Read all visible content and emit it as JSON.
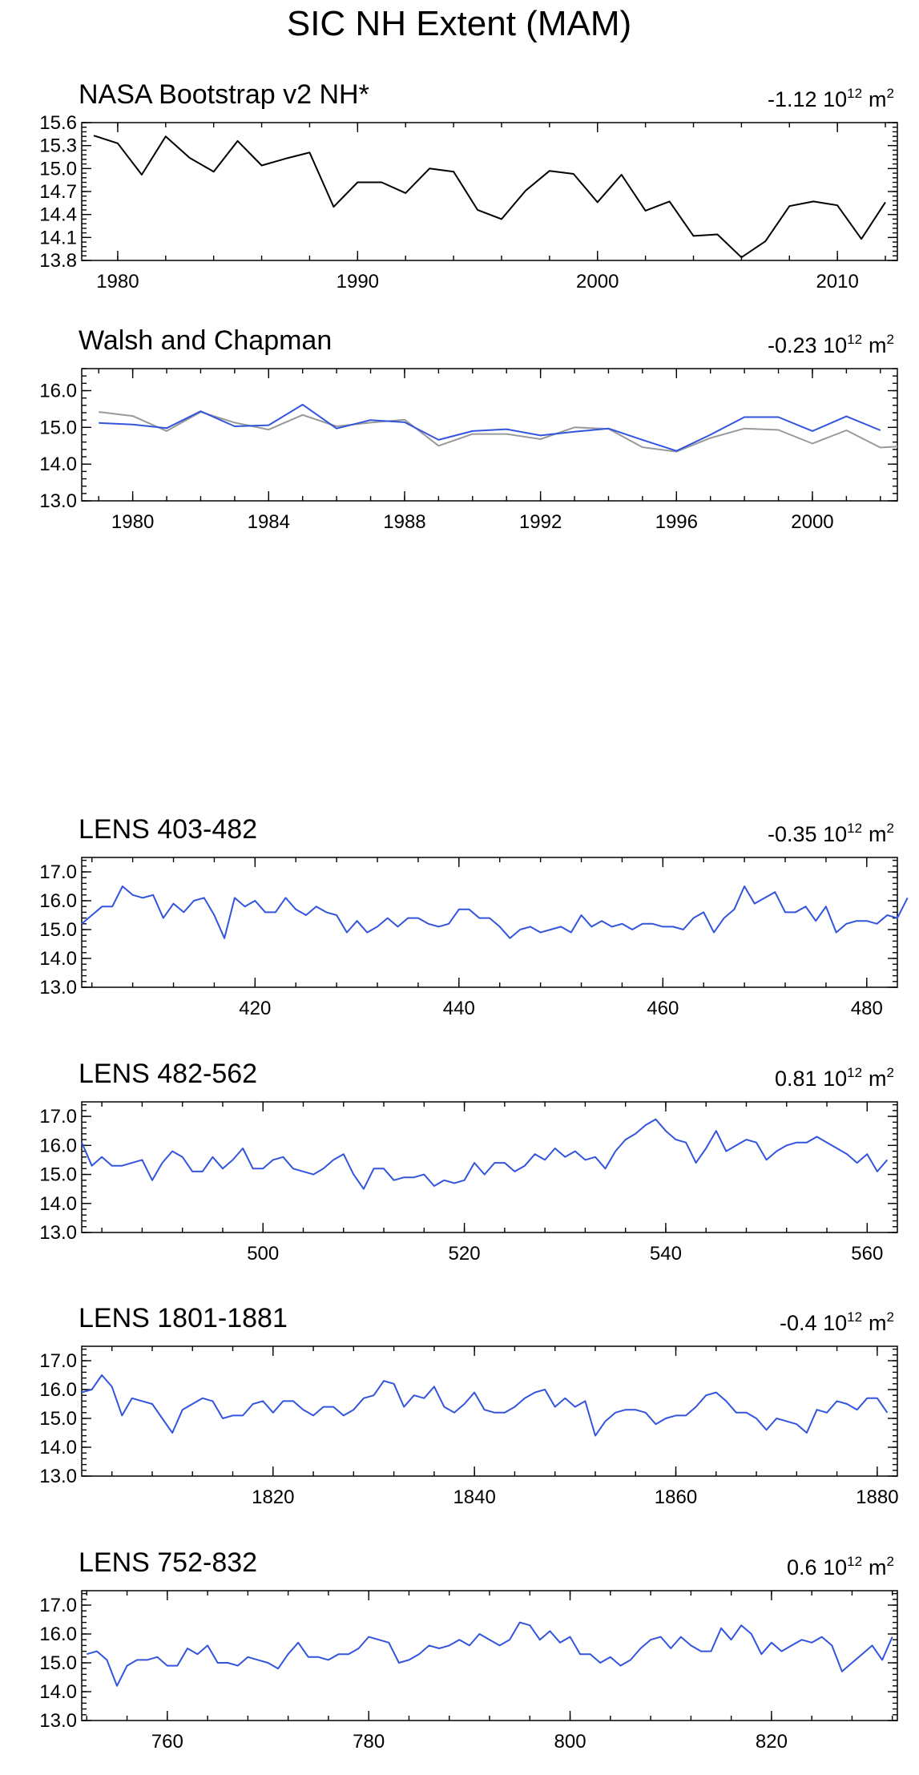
{
  "figure_title": "SIC NH Extent (MAM)",
  "chart_data": [
    {
      "type": "line",
      "title": "NASA Bootstrap v2 NH*",
      "trend_value": "-1.12",
      "trend_unit_base": "10",
      "trend_unit_exp": "12",
      "trend_unit_suffix": "m",
      "trend_unit_suffix_exp": "2",
      "xlim": [
        1978.5,
        2012.5
      ],
      "ylim": [
        13.8,
        15.6
      ],
      "yticks": [
        13.8,
        14.1,
        14.4,
        14.7,
        15.0,
        15.3,
        15.6
      ],
      "ytick_labels": [
        "13.8",
        "14.1",
        "14.4",
        "14.7",
        "15.0",
        "15.3",
        "15.6"
      ],
      "xticks": [
        1980,
        1990,
        2000,
        2010
      ],
      "xtick_labels": [
        "1980",
        "1990",
        "2000",
        "2010"
      ],
      "x_minor_step": 2,
      "series": [
        {
          "color": "#000000",
          "x": [
            1979,
            1980,
            1981,
            1982,
            1983,
            1984,
            1985,
            1986,
            1987,
            1988,
            1989,
            1990,
            1991,
            1992,
            1993,
            1994,
            1995,
            1996,
            1997,
            1998,
            1999,
            2000,
            2001,
            2002,
            2003,
            2004,
            2005,
            2006,
            2007,
            2008,
            2009,
            2010,
            2011,
            2012
          ],
          "values": [
            15.43,
            15.33,
            14.92,
            15.42,
            15.14,
            14.96,
            15.36,
            15.04,
            15.13,
            15.21,
            14.5,
            14.82,
            14.82,
            14.68,
            15.0,
            14.96,
            14.46,
            14.34,
            14.71,
            14.97,
            14.93,
            14.56,
            14.92,
            14.45,
            14.57,
            14.12,
            14.14,
            13.84,
            14.05,
            14.51,
            14.57,
            14.52,
            14.08,
            14.56
          ]
        }
      ]
    },
    {
      "type": "line",
      "title": "Walsh and Chapman",
      "trend_value": "-0.23",
      "trend_unit_base": "10",
      "trend_unit_exp": "12",
      "trend_unit_suffix": "m",
      "trend_unit_suffix_exp": "2",
      "xlim": [
        1978.5,
        2002.5
      ],
      "ylim": [
        13.0,
        16.6
      ],
      "yticks": [
        13.0,
        14.0,
        15.0,
        16.0
      ],
      "ytick_labels": [
        "13.0",
        "14.0",
        "15.0",
        "16.0"
      ],
      "xticks": [
        1980,
        1984,
        1988,
        1992,
        1996,
        2000
      ],
      "xtick_labels": [
        "1980",
        "1984",
        "1988",
        "1992",
        "1996",
        "2000"
      ],
      "x_minor_step": 1,
      "series": [
        {
          "color": "#999999",
          "x": [
            1979,
            1980,
            1981,
            1982,
            1983,
            1984,
            1985,
            1986,
            1987,
            1988,
            1989,
            1990,
            1991,
            1992,
            1993,
            1994,
            1995,
            1996,
            1997,
            1998,
            1999,
            2000,
            2001,
            2002,
            2002.5
          ],
          "values": [
            15.42,
            15.31,
            14.9,
            15.42,
            15.13,
            14.94,
            15.34,
            15.03,
            15.13,
            15.21,
            14.5,
            14.82,
            14.82,
            14.68,
            15.0,
            14.96,
            14.46,
            14.34,
            14.71,
            14.97,
            14.93,
            14.56,
            14.92,
            14.45,
            14.48
          ]
        },
        {
          "color": "#3355dd",
          "x": [
            1979,
            1980,
            1981,
            1982,
            1983,
            1984,
            1985,
            1986,
            1987,
            1988,
            1989,
            1990,
            1991,
            1992,
            1993,
            1994,
            1995,
            1996,
            1997,
            1998,
            1999,
            2000,
            2001,
            2002
          ],
          "values": [
            15.12,
            15.08,
            14.98,
            15.44,
            15.03,
            15.06,
            15.62,
            14.97,
            15.2,
            15.14,
            14.66,
            14.9,
            14.95,
            14.78,
            14.88,
            14.97,
            14.66,
            14.36,
            14.8,
            15.28,
            15.28,
            14.9,
            15.3,
            14.92
          ]
        }
      ]
    },
    {
      "type": "line",
      "title": "LENS 403-482",
      "trend_value": "-0.35",
      "trend_unit_base": "10",
      "trend_unit_exp": "12",
      "trend_unit_suffix": "m",
      "trend_unit_suffix_exp": "2",
      "xlim": [
        403,
        483
      ],
      "ylim": [
        13.0,
        17.5
      ],
      "yticks": [
        13.0,
        14.0,
        15.0,
        16.0,
        17.0
      ],
      "ytick_labels": [
        "13.0",
        "14.0",
        "15.0",
        "16.0",
        "17.0"
      ],
      "xticks": [
        420,
        440,
        460,
        480
      ],
      "xtick_labels": [
        "420",
        "440",
        "460",
        "480"
      ],
      "x_minor_step": 4,
      "series": [
        {
          "color": "#3355dd",
          "x0": 403,
          "values": [
            15.2,
            15.5,
            15.8,
            15.8,
            16.5,
            16.2,
            16.1,
            16.2,
            15.4,
            15.9,
            15.6,
            16.0,
            16.1,
            15.5,
            14.7,
            16.1,
            15.8,
            16.0,
            15.6,
            15.6,
            16.1,
            15.7,
            15.5,
            15.8,
            15.6,
            15.5,
            14.9,
            15.3,
            14.9,
            15.1,
            15.4,
            15.1,
            15.4,
            15.4,
            15.2,
            15.1,
            15.2,
            15.7,
            15.7,
            15.4,
            15.4,
            15.1,
            14.7,
            15.0,
            15.1,
            14.9,
            15.0,
            15.1,
            14.9,
            15.5,
            15.1,
            15.3,
            15.1,
            15.2,
            15.0,
            15.2,
            15.2,
            15.1,
            15.1,
            15.0,
            15.4,
            15.6,
            14.9,
            15.4,
            15.7,
            16.5,
            15.9,
            16.1,
            16.3,
            15.6,
            15.6,
            15.8,
            15.3,
            15.8,
            14.9,
            15.2,
            15.3,
            15.3,
            15.2,
            15.5,
            15.4,
            16.1
          ]
        }
      ]
    },
    {
      "type": "line",
      "title": "LENS 482-562",
      "trend_value": "0.81",
      "trend_unit_base": "10",
      "trend_unit_exp": "12",
      "trend_unit_suffix": "m",
      "trend_unit_suffix_exp": "2",
      "xlim": [
        482,
        563
      ],
      "ylim": [
        13.0,
        17.5
      ],
      "yticks": [
        13.0,
        14.0,
        15.0,
        16.0,
        17.0
      ],
      "ytick_labels": [
        "13.0",
        "14.0",
        "15.0",
        "16.0",
        "17.0"
      ],
      "xticks": [
        500,
        520,
        540,
        560
      ],
      "xtick_labels": [
        "500",
        "520",
        "540",
        "560"
      ],
      "x_minor_step": 4,
      "series": [
        {
          "color": "#3355dd",
          "x0": 482,
          "values": [
            16.1,
            15.3,
            15.6,
            15.3,
            15.3,
            15.4,
            15.5,
            14.8,
            15.4,
            15.8,
            15.6,
            15.1,
            15.1,
            15.6,
            15.2,
            15.5,
            15.9,
            15.2,
            15.2,
            15.5,
            15.6,
            15.2,
            15.1,
            15.0,
            15.2,
            15.5,
            15.7,
            15.0,
            14.5,
            15.2,
            15.2,
            14.8,
            14.9,
            14.9,
            15.0,
            14.6,
            14.8,
            14.7,
            14.8,
            15.4,
            15.0,
            15.4,
            15.4,
            15.1,
            15.3,
            15.7,
            15.5,
            15.9,
            15.6,
            15.8,
            15.5,
            15.6,
            15.2,
            15.8,
            16.2,
            16.4,
            16.7,
            16.9,
            16.5,
            16.2,
            16.1,
            15.4,
            15.9,
            16.5,
            15.8,
            16.0,
            16.2,
            16.1,
            15.5,
            15.8,
            16.0,
            16.1,
            16.1,
            16.3,
            16.1,
            15.9,
            15.7,
            15.4,
            15.7,
            15.1,
            15.5
          ]
        }
      ]
    },
    {
      "type": "line",
      "title": "LENS 1801-1881",
      "trend_value": "-0.4",
      "trend_unit_base": "10",
      "trend_unit_exp": "12",
      "trend_unit_suffix": "m",
      "trend_unit_suffix_exp": "2",
      "xlim": [
        1801,
        1882
      ],
      "ylim": [
        13.0,
        17.5
      ],
      "yticks": [
        13.0,
        14.0,
        15.0,
        16.0,
        17.0
      ],
      "ytick_labels": [
        "13.0",
        "14.0",
        "15.0",
        "16.0",
        "17.0"
      ],
      "xticks": [
        1820,
        1840,
        1860,
        1880
      ],
      "xtick_labels": [
        "1820",
        "1840",
        "1860",
        "1880"
      ],
      "x_minor_step": 4,
      "series": [
        {
          "color": "#3355dd",
          "x0": 1801,
          "values": [
            15.9,
            16.0,
            16.5,
            16.1,
            15.1,
            15.7,
            15.6,
            15.5,
            15.0,
            14.5,
            15.3,
            15.5,
            15.7,
            15.6,
            15.0,
            15.1,
            15.1,
            15.5,
            15.6,
            15.2,
            15.6,
            15.6,
            15.3,
            15.1,
            15.4,
            15.4,
            15.1,
            15.3,
            15.7,
            15.8,
            16.3,
            16.2,
            15.4,
            15.8,
            15.7,
            16.1,
            15.4,
            15.2,
            15.5,
            15.9,
            15.3,
            15.2,
            15.2,
            15.4,
            15.7,
            15.9,
            16.0,
            15.4,
            15.7,
            15.4,
            15.6,
            14.4,
            14.9,
            15.2,
            15.3,
            15.3,
            15.2,
            14.8,
            15.0,
            15.1,
            15.1,
            15.4,
            15.8,
            15.9,
            15.6,
            15.2,
            15.2,
            15.0,
            14.6,
            15.0,
            14.9,
            14.8,
            14.5,
            15.3,
            15.2,
            15.6,
            15.5,
            15.3,
            15.7,
            15.7,
            15.2
          ]
        }
      ]
    },
    {
      "type": "line",
      "title": "LENS 752-832",
      "trend_value": "0.6",
      "trend_unit_base": "10",
      "trend_unit_exp": "12",
      "trend_unit_suffix": "m",
      "trend_unit_suffix_exp": "2",
      "xlim": [
        751.5,
        832.5
      ],
      "ylim": [
        13.0,
        17.5
      ],
      "yticks": [
        13.0,
        14.0,
        15.0,
        16.0,
        17.0
      ],
      "ytick_labels": [
        "13.0",
        "14.0",
        "15.0",
        "16.0",
        "17.0"
      ],
      "xticks": [
        760,
        780,
        800,
        820
      ],
      "xtick_labels": [
        "760",
        "780",
        "800",
        "820"
      ],
      "x_minor_step": 4,
      "series": [
        {
          "color": "#3355dd",
          "x0": 752,
          "values": [
            15.3,
            15.4,
            15.1,
            14.2,
            14.9,
            15.1,
            15.1,
            15.2,
            14.9,
            14.9,
            15.5,
            15.3,
            15.6,
            15.0,
            15.0,
            14.9,
            15.2,
            15.1,
            15.0,
            14.8,
            15.3,
            15.7,
            15.2,
            15.2,
            15.1,
            15.3,
            15.3,
            15.5,
            15.9,
            15.8,
            15.7,
            15.0,
            15.1,
            15.3,
            15.6,
            15.5,
            15.6,
            15.8,
            15.6,
            16.0,
            15.8,
            15.6,
            15.8,
            16.4,
            16.3,
            15.8,
            16.1,
            15.7,
            15.9,
            15.3,
            15.3,
            15.0,
            15.2,
            14.9,
            15.1,
            15.5,
            15.8,
            15.9,
            15.5,
            15.9,
            15.6,
            15.4,
            15.4,
            16.2,
            15.8,
            16.3,
            16.0,
            15.3,
            15.7,
            15.4,
            15.6,
            15.8,
            15.7,
            15.9,
            15.6,
            14.7,
            15.0,
            15.3,
            15.6,
            15.1,
            15.9
          ]
        }
      ]
    }
  ]
}
